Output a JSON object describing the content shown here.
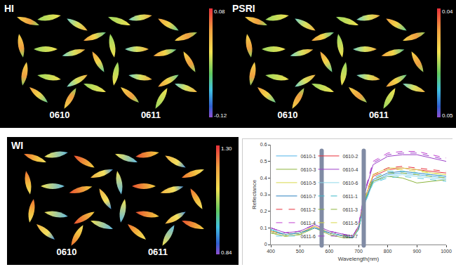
{
  "panels": [
    {
      "label": "HI",
      "dates": [
        "0610",
        "0611"
      ],
      "colorbar": {
        "top": 0.08,
        "bottom": -0.12
      }
    },
    {
      "label": "PSRI",
      "dates": [
        "0610",
        "0611"
      ],
      "colorbar": {
        "top": 0.04,
        "bottom": 0.05
      }
    },
    {
      "label": "WI",
      "dates": [
        "0610",
        "0611"
      ],
      "colorbar": {
        "top": {
          "value": 1.3,
          "label": "1.30"
        },
        "bottom": 0.84
      }
    }
  ],
  "chart_data": {
    "type": "line",
    "x_label": "Wavelength(nm)",
    "y_label": "Reflectance",
    "x": [
      400,
      450,
      500,
      550,
      600,
      650,
      680,
      700,
      720,
      750,
      800,
      850,
      900,
      950,
      1000
    ],
    "xlim": [
      400,
      1000
    ],
    "xticks": [
      400,
      500,
      600,
      700,
      800,
      900,
      1000
    ],
    "ylim": [
      0,
      0.6
    ],
    "yticks": [
      0,
      0.1,
      0.2,
      0.3,
      0.4,
      0.5,
      0.6
    ],
    "legend": "upper left",
    "series": [
      {
        "name": "0610-1",
        "color": "#4fb3e8",
        "line_style": "solid",
        "values": [
          0.09,
          0.06,
          0.07,
          0.1,
          0.07,
          0.05,
          0.04,
          0.09,
          0.24,
          0.38,
          0.42,
          0.43,
          0.42,
          0.41,
          0.4
        ]
      },
      {
        "name": "0610-2",
        "color": "#e8303a",
        "line_style": "solid",
        "values": [
          0.08,
          0.06,
          0.07,
          0.11,
          0.07,
          0.05,
          0.04,
          0.1,
          0.27,
          0.41,
          0.45,
          0.46,
          0.45,
          0.44,
          0.43
        ]
      },
      {
        "name": "0610-3",
        "color": "#8cb43c",
        "line_style": "solid",
        "values": [
          0.07,
          0.05,
          0.06,
          0.1,
          0.06,
          0.04,
          0.04,
          0.09,
          0.25,
          0.38,
          0.41,
          0.4,
          0.37,
          0.38,
          0.39
        ]
      },
      {
        "name": "0610-4",
        "color": "#9b3fc8",
        "line_style": "solid",
        "values": [
          0.1,
          0.07,
          0.08,
          0.12,
          0.08,
          0.06,
          0.05,
          0.11,
          0.3,
          0.48,
          0.53,
          0.54,
          0.54,
          0.52,
          0.5
        ]
      },
      {
        "name": "0610-5",
        "color": "#d8d84a",
        "line_style": "solid",
        "values": [
          0.08,
          0.06,
          0.07,
          0.11,
          0.07,
          0.05,
          0.04,
          0.1,
          0.27,
          0.42,
          0.46,
          0.46,
          0.45,
          0.43,
          0.42
        ]
      },
      {
        "name": "0610-6",
        "color": "#8fd8e8",
        "line_style": "solid",
        "values": [
          0.09,
          0.06,
          0.07,
          0.1,
          0.07,
          0.05,
          0.04,
          0.09,
          0.24,
          0.37,
          0.41,
          0.42,
          0.41,
          0.4,
          0.39
        ]
      },
      {
        "name": "0610-7",
        "color": "#2a7fc0",
        "line_style": "solid",
        "values": [
          0.08,
          0.06,
          0.07,
          0.1,
          0.07,
          0.05,
          0.04,
          0.09,
          0.25,
          0.39,
          0.43,
          0.44,
          0.43,
          0.42,
          0.41
        ]
      },
      {
        "name": "0611-1",
        "color": "#3cb8c8",
        "line_style": "dashed",
        "values": [
          0.09,
          0.06,
          0.07,
          0.1,
          0.07,
          0.05,
          0.04,
          0.09,
          0.25,
          0.4,
          0.44,
          0.44,
          0.43,
          0.42,
          0.41
        ]
      },
      {
        "name": "0611-2",
        "color": "#e8303a",
        "line_style": "dashed",
        "values": [
          0.08,
          0.06,
          0.07,
          0.11,
          0.07,
          0.05,
          0.04,
          0.1,
          0.28,
          0.42,
          0.46,
          0.47,
          0.46,
          0.45,
          0.44
        ]
      },
      {
        "name": "0611-3",
        "color": "#8cb43c",
        "line_style": "dashed",
        "values": [
          0.07,
          0.05,
          0.06,
          0.1,
          0.06,
          0.04,
          0.04,
          0.09,
          0.26,
          0.39,
          0.43,
          0.43,
          0.42,
          0.41,
          0.4
        ]
      },
      {
        "name": "0611-4",
        "color": "#c040d0",
        "line_style": "dashed",
        "values": [
          0.1,
          0.07,
          0.08,
          0.12,
          0.08,
          0.06,
          0.05,
          0.11,
          0.31,
          0.5,
          0.55,
          0.56,
          0.56,
          0.54,
          0.52
        ]
      },
      {
        "name": "0611-5",
        "color": "#d8d84a",
        "line_style": "dashed",
        "values": [
          0.08,
          0.06,
          0.07,
          0.11,
          0.07,
          0.05,
          0.04,
          0.1,
          0.27,
          0.42,
          0.45,
          0.45,
          0.44,
          0.43,
          0.42
        ]
      },
      {
        "name": "0611-6",
        "color": "#5cc8e0",
        "line_style": "dashed",
        "values": [
          0.09,
          0.06,
          0.07,
          0.1,
          0.07,
          0.05,
          0.04,
          0.09,
          0.24,
          0.37,
          0.4,
          0.41,
          0.4,
          0.39,
          0.38
        ]
      },
      {
        "name": "0611-7",
        "color": "#9b3fc8",
        "line_style": "dashed",
        "values": [
          0.1,
          0.07,
          0.08,
          0.12,
          0.08,
          0.06,
          0.05,
          0.11,
          0.3,
          0.49,
          0.54,
          0.55,
          0.55,
          0.53,
          0.51
        ]
      }
    ]
  }
}
